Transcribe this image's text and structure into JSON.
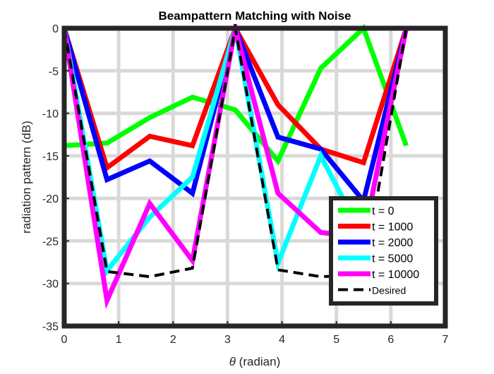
{
  "chart_data": {
    "type": "line",
    "title": "Beampattern Matching with Noise",
    "xlabel_symbol": "θ",
    "xlabel_unit": " (radian)",
    "ylabel": "radiation pattern (dB)",
    "xlim": [
      0,
      7
    ],
    "ylim": [
      -35,
      0
    ],
    "xticks": [
      0,
      1,
      2,
      3,
      4,
      5,
      6,
      7
    ],
    "yticks": [
      0,
      -5,
      -10,
      -15,
      -20,
      -25,
      -30,
      -35
    ],
    "grid": true,
    "legend_position": "bottom-right",
    "x": [
      0,
      0.785,
      1.571,
      2.356,
      3.142,
      3.927,
      4.712,
      5.498,
      6.283
    ],
    "series": [
      {
        "name": "t = 0",
        "color": "#00ff00",
        "style": "solid",
        "values": [
          -13.8,
          -13.5,
          -10.5,
          -8.1,
          -9.6,
          -15.6,
          -4.7,
          0,
          -13.8
        ]
      },
      {
        "name": "t = 1000",
        "color": "#ff0000",
        "style": "solid",
        "values": [
          0,
          -16.4,
          -12.7,
          -13.8,
          0,
          -9.0,
          -14.2,
          -15.8,
          0
        ]
      },
      {
        "name": "t = 2000",
        "color": "#0000ff",
        "style": "solid",
        "values": [
          0,
          -17.8,
          -15.6,
          -19.4,
          0,
          -12.8,
          -14.2,
          -20.3,
          0
        ]
      },
      {
        "name": "t = 5000",
        "color": "#00ffff",
        "style": "solid",
        "values": [
          0,
          -28.5,
          -22.2,
          -17.5,
          0,
          -27.6,
          -15.0,
          -24.6,
          0
        ]
      },
      {
        "name": "t = 10000",
        "color": "#ff00ff",
        "style": "solid",
        "values": [
          0,
          -32.0,
          -20.6,
          -27.3,
          0,
          -19.4,
          -24.0,
          -24.6,
          0
        ]
      },
      {
        "name": "Desired",
        "color": "#000000",
        "style": "dashed",
        "values": [
          0,
          -28.6,
          -29.2,
          -28.2,
          0,
          -28.4,
          -29.2,
          -29.0,
          0
        ]
      }
    ]
  }
}
